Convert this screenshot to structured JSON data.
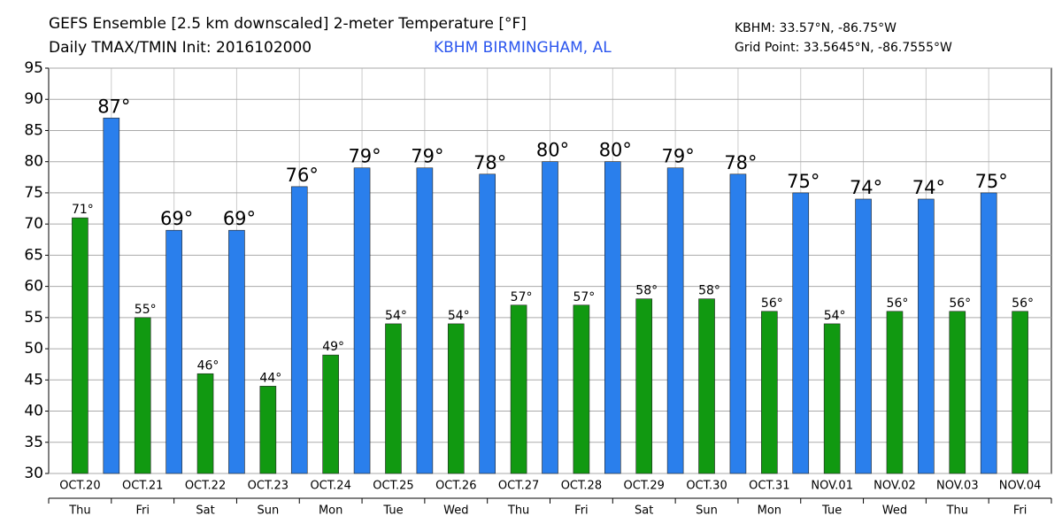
{
  "chart_data": {
    "type": "bar",
    "title": "GEFS Ensemble [2.5 km downscaled] 2-meter Temperature [°F]",
    "subtitle": "Daily TMAX/TMIN Init: 2016102000",
    "location": "KBHM BIRMINGHAM, AL",
    "station_coords": "KBHM: 33.57°N, -86.75°W",
    "grid_point_coords": "Grid Point: 33.5645°N, -86.7555°W",
    "categories": [
      "OCT.20",
      "OCT.21",
      "OCT.22",
      "OCT.23",
      "OCT.24",
      "OCT.25",
      "OCT.26",
      "OCT.27",
      "OCT.28",
      "OCT.29",
      "OCT.30",
      "OCT.31",
      "NOV.01",
      "NOV.02",
      "NOV.03",
      "NOV.04"
    ],
    "weekdays": [
      "Thu",
      "Fri",
      "Sat",
      "Sun",
      "Mon",
      "Tue",
      "Wed",
      "Thu",
      "Fri",
      "Sat",
      "Sun",
      "Mon",
      "Tue",
      "Wed",
      "Thu",
      "Fri"
    ],
    "series": [
      {
        "color": "#119911",
        "values": [
          71,
          55,
          46,
          44,
          49,
          54,
          54,
          57,
          57,
          58,
          58,
          56,
          54,
          56,
          56,
          56
        ],
        "value_labels": [
          "71°",
          "55°",
          "46°",
          "44°",
          "49°",
          "54°",
          "54°",
          "57°",
          "57°",
          "58°",
          "58°",
          "56°",
          "54°",
          "56°",
          "56°",
          "56°"
        ]
      },
      {
        "color": "#2a7fec",
        "values": [
          87,
          69,
          69,
          76,
          79,
          79,
          78,
          80,
          80,
          79,
          78,
          75,
          74,
          74,
          75,
          null
        ],
        "value_labels": [
          "87°",
          "69°",
          "69°",
          "76°",
          "79°",
          "79°",
          "78°",
          "80°",
          "80°",
          "79°",
          "78°",
          "75°",
          "74°",
          "74°",
          "75°",
          null
        ]
      }
    ],
    "ylim": [
      30,
      95
    ],
    "yticks": [
      30,
      35,
      40,
      45,
      50,
      55,
      60,
      65,
      70,
      75,
      80,
      85,
      90,
      95
    ],
    "grid": true
  }
}
